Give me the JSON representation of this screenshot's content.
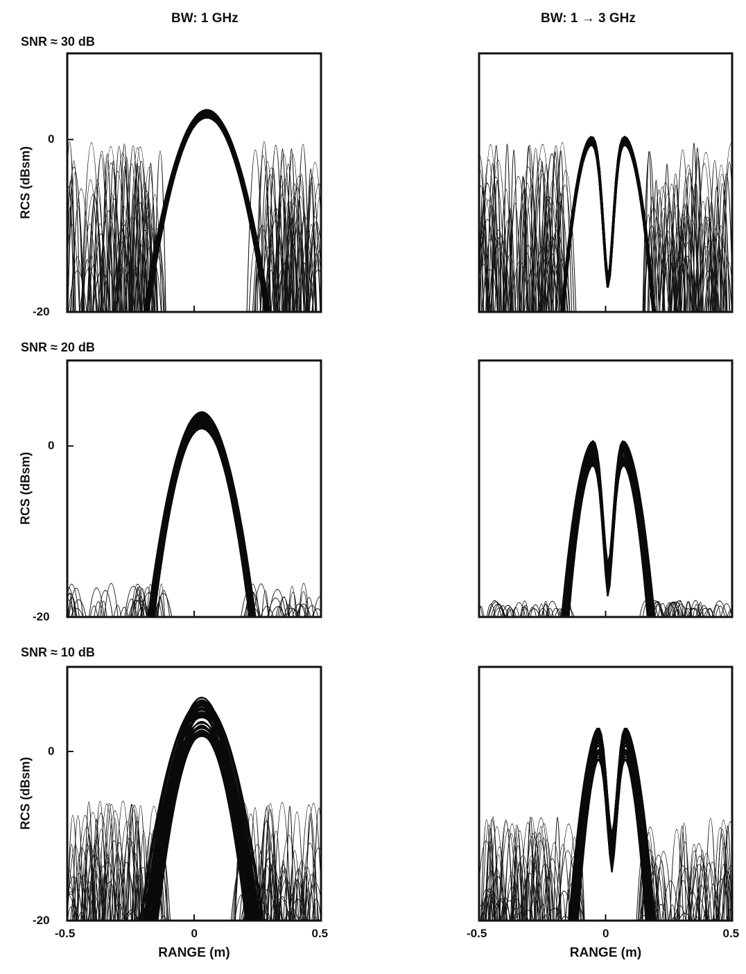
{
  "column_titles": [
    "BW: 1 GHz",
    "BW: 1 → 3 GHz"
  ],
  "row_labels": [
    "SNR ≈ 30 dB",
    "SNR ≈ 20 dB",
    "SNR ≈ 10 dB"
  ],
  "chart_data": [
    {
      "type": "line",
      "column": "BW: 1 GHz",
      "snr_label": "SNR ≈ 30 dB",
      "ylabel": "RCS (dBsm)",
      "xlabel": "",
      "xlim": [
        -0.5,
        0.5
      ],
      "ylim": [
        -20,
        10
      ],
      "yticks": [
        0,
        -20
      ],
      "xticks": [],
      "grid": false,
      "peak_x": [
        0.05
      ],
      "peak_y": [
        3
      ],
      "halfwidth": 0.24,
      "noise_level": 0,
      "spread": 1
    },
    {
      "type": "line",
      "column": "BW: 1 → 3 GHz",
      "snr_label": "SNR ≈ 30 dB",
      "ylabel": "",
      "xlabel": "",
      "xlim": [
        -0.5,
        0.5
      ],
      "ylim": [
        -20,
        10
      ],
      "yticks": [],
      "xticks": [],
      "grid": false,
      "peak_x": [
        -0.05,
        0.07
      ],
      "peak_y": [
        0,
        0
      ],
      "halfwidth": 0.13,
      "noise_level": 0,
      "spread": 1
    },
    {
      "type": "line",
      "column": "BW: 1 GHz",
      "snr_label": "SNR ≈ 20 dB",
      "ylabel": "RCS (dBsm)",
      "xlabel": "",
      "xlim": [
        -0.5,
        0.5
      ],
      "ylim": [
        -20,
        10
      ],
      "yticks": [
        0,
        -20
      ],
      "xticks": [],
      "grid": false,
      "peak_x": [
        0.03
      ],
      "peak_y": [
        3
      ],
      "halfwidth": 0.2,
      "noise_level": -15,
      "spread": 2
    },
    {
      "type": "line",
      "column": "BW: 1 → 3 GHz",
      "snr_label": "SNR ≈ 20 dB",
      "ylabel": "",
      "xlabel": "",
      "xlim": [
        -0.5,
        0.5
      ],
      "ylim": [
        -20,
        10
      ],
      "yticks": [],
      "xticks": [],
      "grid": false,
      "peak_x": [
        -0.04,
        0.06
      ],
      "peak_y": [
        -0.5,
        -0.5
      ],
      "halfwidth": 0.13,
      "noise_level": -17,
      "spread": 3
    },
    {
      "type": "line",
      "column": "BW: 1 GHz",
      "snr_label": "SNR ≈ 10 dB",
      "ylabel": "RCS (dBsm)",
      "xlabel": "RANGE (m)",
      "xlim": [
        -0.5,
        0.5
      ],
      "ylim": [
        -20,
        10
      ],
      "yticks": [
        0,
        -20
      ],
      "xticks": [
        -0.5,
        0,
        0.5
      ],
      "grid": false,
      "peak_x": [
        0.03
      ],
      "peak_y": [
        4
      ],
      "halfwidth": 0.2,
      "noise_level": -6,
      "spread": 5
    },
    {
      "type": "line",
      "column": "BW: 1 → 3 GHz",
      "snr_label": "SNR ≈ 10 dB",
      "ylabel": "",
      "xlabel": "RANGE (m)",
      "xlim": [
        -0.5,
        0.5
      ],
      "ylim": [
        -20,
        10
      ],
      "yticks": [],
      "xticks": [
        -0.5,
        0,
        0.5
      ],
      "grid": false,
      "peak_x": [
        -0.01,
        0.06
      ],
      "peak_y": [
        2,
        2
      ],
      "halfwidth": 0.12,
      "noise_level": -8,
      "spread": 4
    }
  ]
}
